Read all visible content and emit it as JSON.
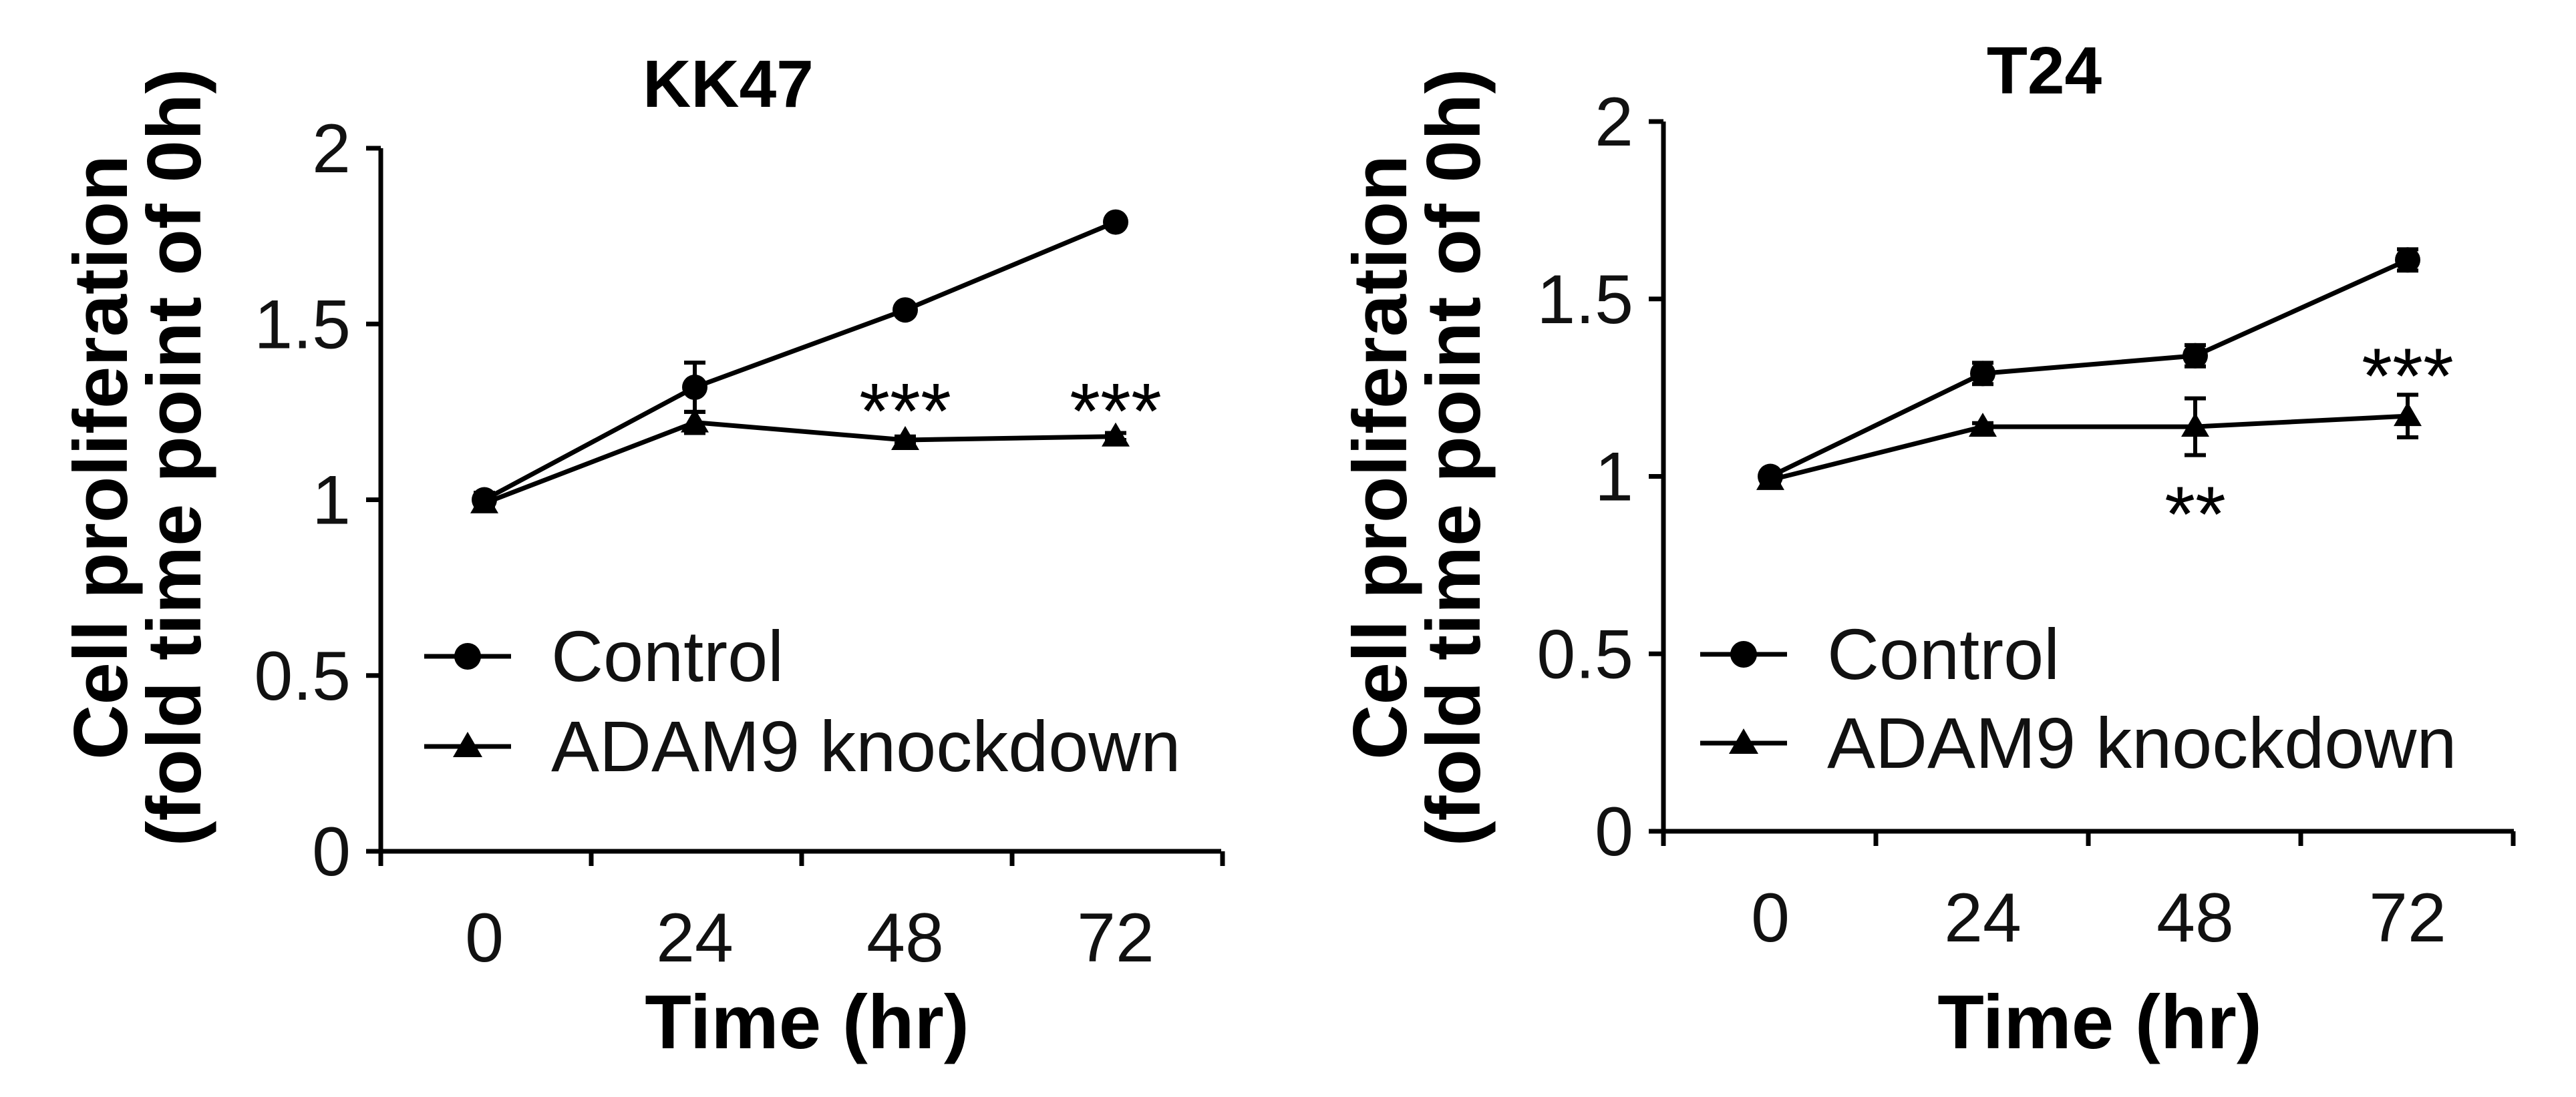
{
  "chart_data": [
    {
      "type": "line",
      "title": "KK47",
      "xlabel": "Time (hr)",
      "ylabel": [
        "Cell proliferation",
        "(fold time point of 0h)"
      ],
      "categories": [
        "0",
        "24",
        "48",
        "72"
      ],
      "yticks": [
        "0",
        "0.5",
        "1",
        "1.5",
        "2"
      ],
      "ylim": [
        0,
        2
      ],
      "legend_position": "bottom-left",
      "series": [
        {
          "name": "Control",
          "marker": "circle",
          "values": [
            1.0,
            1.32,
            1.54,
            1.79
          ],
          "errors": [
            0.02,
            0.07,
            0.01,
            0.01
          ]
        },
        {
          "name": "ADAM9 knockdown",
          "marker": "triangle",
          "values": [
            0.99,
            1.22,
            1.17,
            1.18
          ],
          "errors": [
            0.02,
            0.03,
            0.01,
            0.01
          ]
        }
      ],
      "annotations": [
        {
          "category_index": 2,
          "y": 1.29,
          "text": "***"
        },
        {
          "category_index": 3,
          "y": 1.29,
          "text": "***"
        }
      ]
    },
    {
      "type": "line",
      "title": "T24",
      "xlabel": "Time (hr)",
      "ylabel": [
        "Cell proliferation",
        "(fold time point of 0h)"
      ],
      "categories": [
        "0",
        "24",
        "48",
        "72"
      ],
      "yticks": [
        "0",
        "0.5",
        "1",
        "1.5",
        "2"
      ],
      "ylim": [
        0,
        2
      ],
      "legend_position": "bottom-left",
      "series": [
        {
          "name": "Control",
          "marker": "circle",
          "values": [
            1.0,
            1.29,
            1.34,
            1.61
          ],
          "errors": [
            0.01,
            0.03,
            0.03,
            0.03
          ]
        },
        {
          "name": "ADAM9 knockdown",
          "marker": "triangle",
          "values": [
            0.99,
            1.14,
            1.14,
            1.17
          ],
          "errors": [
            0.01,
            0.01,
            0.08,
            0.06
          ]
        }
      ],
      "annotations": [
        {
          "category_index": 2,
          "y": 0.93,
          "text": "**"
        },
        {
          "category_index": 3,
          "y": 1.32,
          "text": "***"
        }
      ]
    }
  ]
}
